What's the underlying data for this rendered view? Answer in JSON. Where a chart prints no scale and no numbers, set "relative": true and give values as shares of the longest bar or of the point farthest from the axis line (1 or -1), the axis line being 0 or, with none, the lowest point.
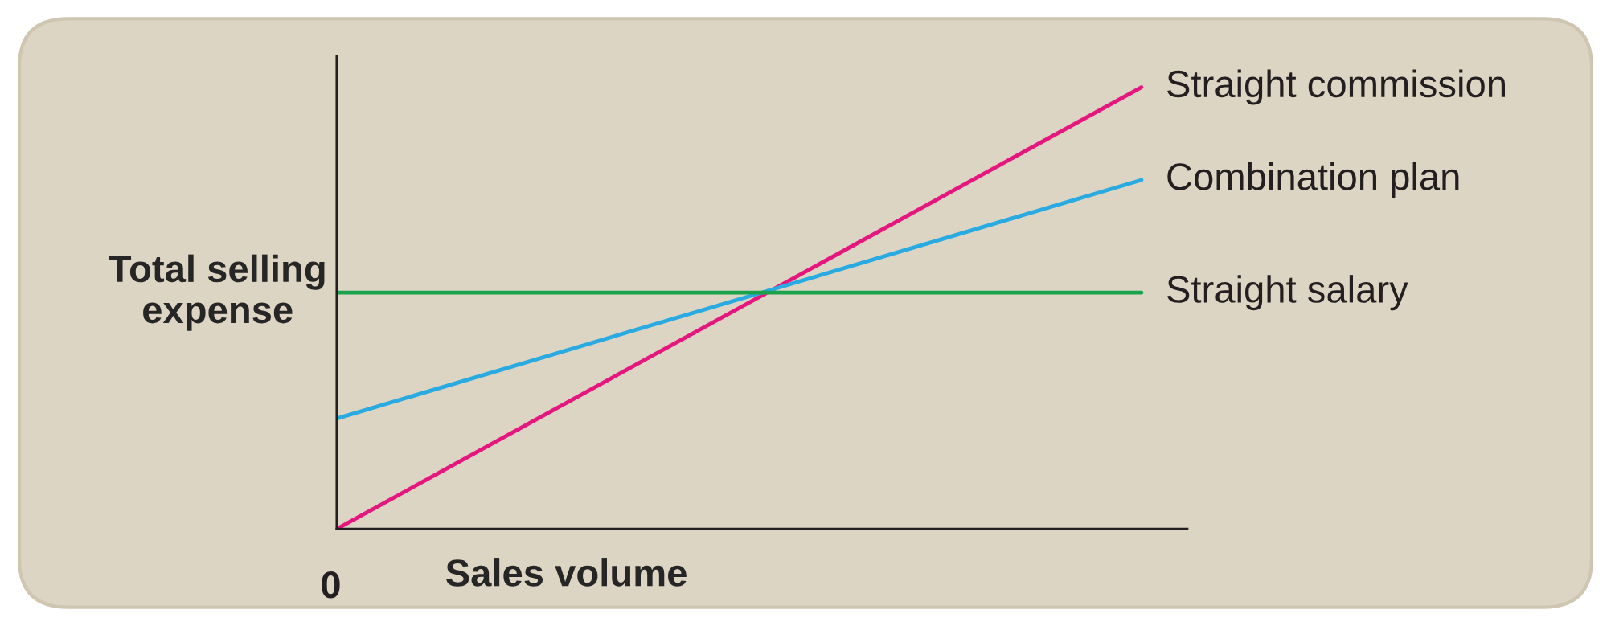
{
  "chart_data": {
    "type": "line",
    "relative": true,
    "xlabel": "Sales volume",
    "ylabel": "Total selling\nexpense",
    "categories": [
      null,
      null
    ],
    "annotations": [
      "0"
    ],
    "series": [
      {
        "name": "Straight commission",
        "color": "#e5177e",
        "values": [
          0,
          1
        ]
      },
      {
        "name": "Combination plan",
        "color": "#29abe2",
        "values": [
          0.25,
          0.79
        ]
      },
      {
        "name": "Straight salary",
        "color": "#1aa34a",
        "values": [
          0.535,
          0.535
        ]
      }
    ],
    "grid": false,
    "legend": false,
    "marker": "none",
    "line_style": "solid"
  }
}
